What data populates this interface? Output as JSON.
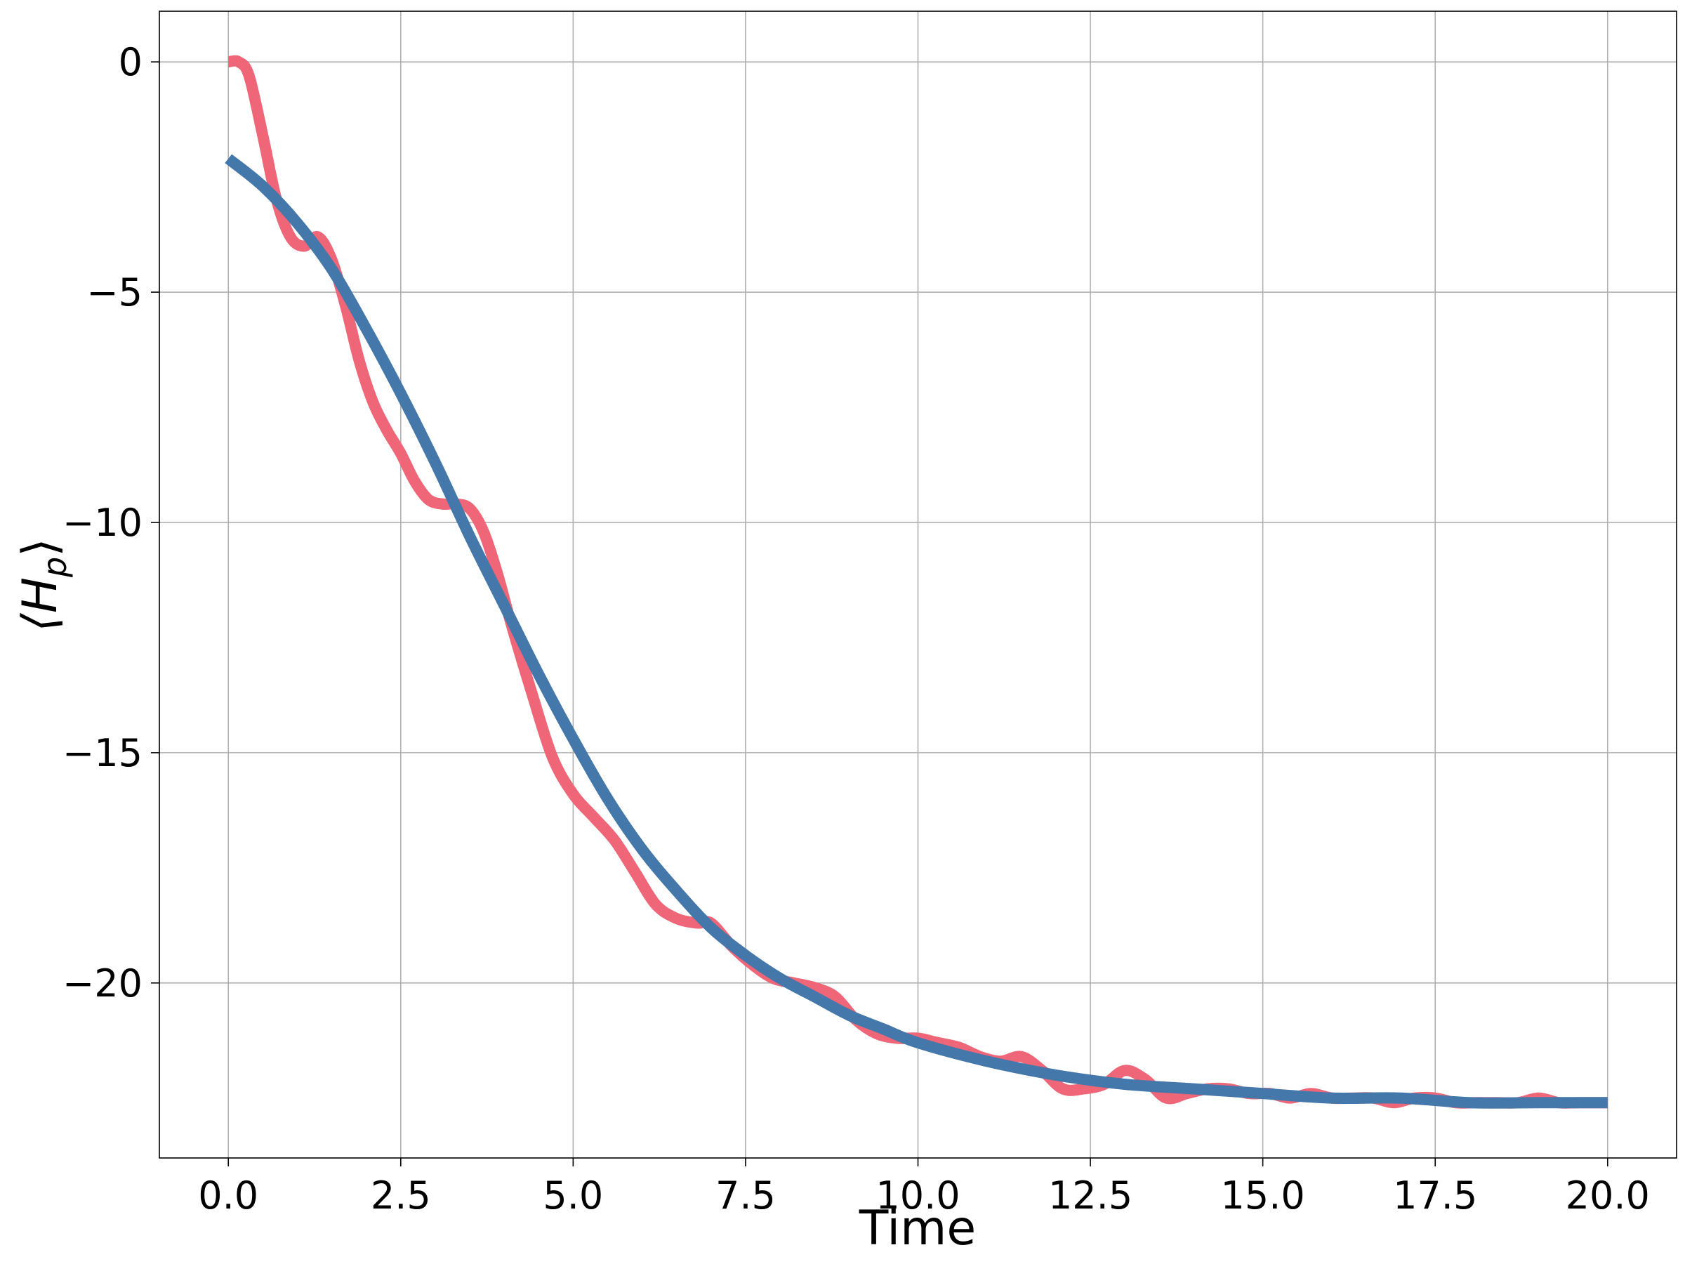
{
  "chart_data": {
    "type": "line",
    "xlabel": "Time",
    "ylabel": "⟨H_p⟩",
    "ylabel_main": "⟨H",
    "ylabel_sub": "p",
    "ylabel_close": "⟩",
    "xlim": [
      -1.0,
      21.0
    ],
    "ylim": [
      -23.8,
      1.1
    ],
    "xticks": [
      0.0,
      2.5,
      5.0,
      7.5,
      10.0,
      12.5,
      15.0,
      17.5,
      20.0
    ],
    "xtick_labels": [
      "0.0",
      "2.5",
      "5.0",
      "7.5",
      "10.0",
      "12.5",
      "15.0",
      "17.5",
      "20.0"
    ],
    "yticks": [
      0,
      -5,
      -10,
      -15,
      -20
    ],
    "ytick_labels": [
      "0",
      "−5",
      "−10",
      "−15",
      "−20"
    ],
    "grid": true,
    "series": [
      {
        "color": "#EE6677",
        "x": [
          0.0,
          0.15,
          0.3,
          0.5,
          0.7,
          0.9,
          1.1,
          1.3,
          1.5,
          1.7,
          1.9,
          2.1,
          2.3,
          2.5,
          2.7,
          2.9,
          3.1,
          3.3,
          3.5,
          3.7,
          3.9,
          4.1,
          4.4,
          4.7,
          5.0,
          5.3,
          5.6,
          5.9,
          6.2,
          6.5,
          6.8,
          7.0,
          7.3,
          7.6,
          7.9,
          8.2,
          8.5,
          8.8,
          9.1,
          9.4,
          9.7,
          10.0,
          10.3,
          10.6,
          10.9,
          11.2,
          11.5,
          11.8,
          12.1,
          12.4,
          12.7,
          13.0,
          13.3,
          13.6,
          13.9,
          14.2,
          14.5,
          14.8,
          15.1,
          15.4,
          15.7,
          16.0,
          16.3,
          16.6,
          16.9,
          17.2,
          17.5,
          17.8,
          18.1,
          18.4,
          18.7,
          19.0,
          19.3,
          19.6,
          20.0
        ],
        "y": [
          0.0,
          0.0,
          -0.3,
          -1.6,
          -3.0,
          -3.8,
          -4.0,
          -3.8,
          -4.3,
          -5.3,
          -6.5,
          -7.4,
          -8.0,
          -8.5,
          -9.1,
          -9.5,
          -9.6,
          -9.6,
          -9.7,
          -10.2,
          -11.1,
          -12.2,
          -13.7,
          -15.1,
          -15.9,
          -16.4,
          -16.9,
          -17.6,
          -18.3,
          -18.6,
          -18.7,
          -18.7,
          -19.2,
          -19.6,
          -19.9,
          -20.0,
          -20.1,
          -20.3,
          -20.8,
          -21.1,
          -21.2,
          -21.2,
          -21.3,
          -21.4,
          -21.6,
          -21.7,
          -21.6,
          -21.9,
          -22.3,
          -22.3,
          -22.2,
          -21.9,
          -22.1,
          -22.5,
          -22.4,
          -22.3,
          -22.3,
          -22.4,
          -22.4,
          -22.5,
          -22.4,
          -22.5,
          -22.5,
          -22.5,
          -22.6,
          -22.5,
          -22.5,
          -22.6,
          -22.6,
          -22.6,
          -22.6,
          -22.5,
          -22.6,
          -22.6,
          -22.6
        ]
      },
      {
        "color": "#4477AA",
        "x": [
          0.0,
          0.5,
          1.0,
          1.5,
          2.0,
          2.5,
          3.0,
          3.5,
          4.0,
          4.5,
          5.0,
          5.5,
          6.0,
          6.5,
          7.0,
          7.5,
          8.0,
          8.5,
          9.0,
          9.5,
          10.0,
          11.0,
          12.0,
          13.0,
          14.0,
          15.0,
          16.0,
          17.0,
          18.0,
          19.0,
          20.0
        ],
        "y": [
          -2.1,
          -2.7,
          -3.5,
          -4.5,
          -5.8,
          -7.2,
          -8.7,
          -10.3,
          -11.8,
          -13.3,
          -14.7,
          -16.0,
          -17.1,
          -18.0,
          -18.8,
          -19.4,
          -19.9,
          -20.3,
          -20.7,
          -21.0,
          -21.3,
          -21.7,
          -22.0,
          -22.2,
          -22.3,
          -22.4,
          -22.5,
          -22.5,
          -22.6,
          -22.6,
          -22.6
        ]
      }
    ]
  }
}
